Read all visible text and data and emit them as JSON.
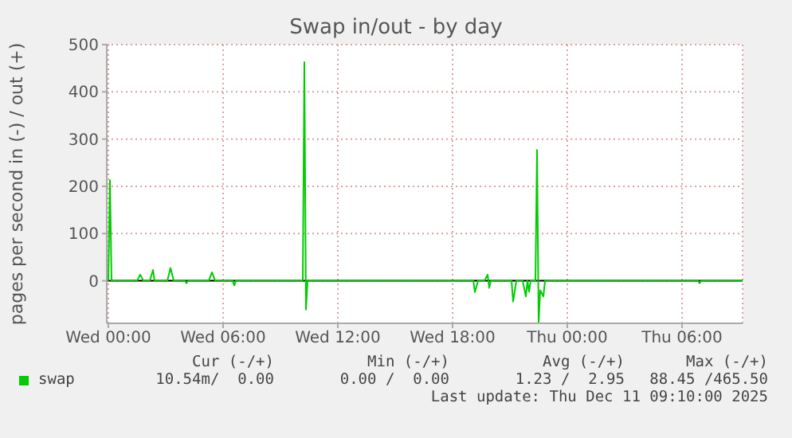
{
  "chart_data": {
    "type": "line",
    "title": "Swap in/out - by day",
    "ylabel": "pages per second in (-) / out (+)",
    "x": [
      "2025-12-10T00:00",
      "2025-12-10T00:05",
      "2025-12-10T00:10",
      "2025-12-10T01:30",
      "2025-12-10T01:40",
      "2025-12-10T01:50",
      "2025-12-10T02:10",
      "2025-12-10T02:20",
      "2025-12-10T02:25",
      "2025-12-10T03:05",
      "2025-12-10T03:15",
      "2025-12-10T03:25",
      "2025-12-10T04:00",
      "2025-12-10T04:05",
      "2025-12-10T04:10",
      "2025-12-10T05:15",
      "2025-12-10T05:25",
      "2025-12-10T05:35",
      "2025-12-10T06:30",
      "2025-12-10T06:35",
      "2025-12-10T06:40",
      "2025-12-10T10:10",
      "2025-12-10T10:15",
      "2025-12-10T10:20",
      "2025-12-10T10:25",
      "2025-12-10T10:35",
      "2025-12-10T19:05",
      "2025-12-10T19:10",
      "2025-12-10T19:20",
      "2025-12-10T19:40",
      "2025-12-10T19:50",
      "2025-12-10T19:55",
      "2025-12-10T20:00",
      "2025-12-10T20:05",
      "2025-12-10T21:05",
      "2025-12-10T21:10",
      "2025-12-10T21:20",
      "2025-12-10T21:40",
      "2025-12-10T21:50",
      "2025-12-10T21:55",
      "2025-12-10T22:00",
      "2025-12-10T22:05",
      "2025-12-10T22:20",
      "2025-12-10T22:25",
      "2025-12-10T22:30",
      "2025-12-10T22:35",
      "2025-12-10T22:45",
      "2025-12-10T22:50",
      "2025-12-10T22:55",
      "2025-12-11T06:50",
      "2025-12-11T06:55",
      "2025-12-11T07:00",
      "2025-12-11T09:10"
    ],
    "series": [
      {
        "name": "swap",
        "color": "#00cc00",
        "values": [
          0,
          213,
          0,
          0,
          13,
          0,
          0,
          23,
          0,
          0,
          27,
          0,
          0,
          -5,
          0,
          0,
          18,
          0,
          0,
          -10,
          0,
          0,
          463,
          -61,
          0,
          0,
          0,
          -24,
          0,
          0,
          13,
          -15,
          0,
          0,
          0,
          -44,
          0,
          0,
          -33,
          0,
          -23,
          0,
          0,
          277,
          -88,
          -20,
          -33,
          0,
          0,
          0,
          -5,
          0,
          0
        ]
      }
    ],
    "xlim": [
      "2025-12-09T23:55",
      "2025-12-11T09:10"
    ],
    "xticks": [
      {
        "value": "2025-12-10T00:00",
        "label": "Wed 00:00"
      },
      {
        "value": "2025-12-10T06:00",
        "label": "Wed 06:00"
      },
      {
        "value": "2025-12-10T12:00",
        "label": "Wed 12:00"
      },
      {
        "value": "2025-12-10T18:00",
        "label": "Wed 18:00"
      },
      {
        "value": "2025-12-11T00:00",
        "label": "Thu 00:00"
      },
      {
        "value": "2025-12-11T06:00",
        "label": "Thu 06:00"
      }
    ],
    "ylim": [
      -90,
      500
    ],
    "yticks": [
      0,
      100,
      200,
      300,
      400,
      500
    ],
    "ref_lines": [
      {
        "axis": "y",
        "value": 0,
        "color": "#000000"
      }
    ],
    "grid": true,
    "legend": "bottom",
    "marker": "none",
    "line_style": "solid",
    "annotations": [
      "Cur (-/+)",
      "Min (-/+)",
      "Avg (-/+)",
      "Max (-/+)",
      "10.54m/  0.00",
      "0.00 /  0.00",
      "1.23 /  2.95",
      "88.45 /465.50",
      "Last update: Thu Dec 11 09:10:00 2025"
    ]
  }
}
